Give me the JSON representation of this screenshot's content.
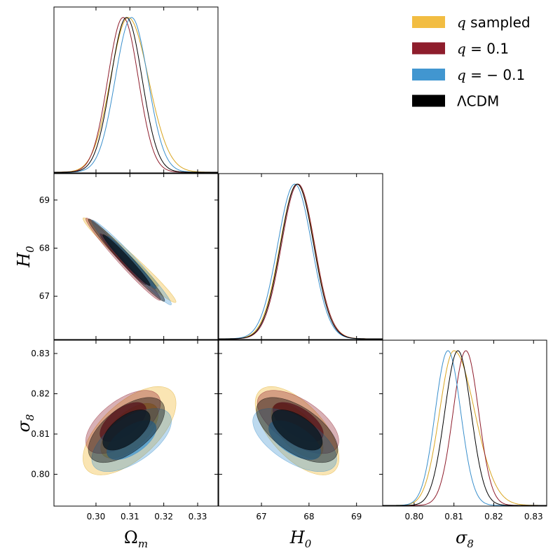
{
  "chart_data": {
    "type": "triangle_corner_plot",
    "parameters": [
      {
        "key": "om",
        "label": "Ω",
        "sub": "m",
        "range": [
          0.2876,
          0.336
        ],
        "ticks": [
          0.3,
          0.31,
          0.32,
          0.33
        ],
        "tick_labels": [
          "0.30",
          "0.31",
          "0.32",
          "0.33"
        ]
      },
      {
        "key": "h0",
        "label": "H",
        "sub": "0",
        "range": [
          66.1,
          69.55
        ],
        "ticks": [
          67,
          68,
          69
        ],
        "tick_labels": [
          "67",
          "68",
          "69"
        ]
      },
      {
        "key": "s8",
        "label": "σ",
        "sub": "8",
        "range": [
          0.7921,
          0.8333
        ],
        "ticks": [
          0.8,
          0.81,
          0.82,
          0.83
        ],
        "tick_labels": [
          "0.80",
          "0.81",
          "0.82",
          "0.83"
        ]
      }
    ],
    "series": [
      {
        "name": "q sampled",
        "legend_italic": "q",
        "legend_rest": " sampled",
        "color": "#f2bd42",
        "line_color": "#d9a520",
        "contour_alpha": [
          0.4,
          0.75
        ],
        "om": {
          "mean": 0.3095,
          "sd": 0.0052,
          "skew": 1.15
        },
        "h0": {
          "mean": 67.75,
          "sd": 0.36,
          "skew": 1.0
        },
        "s8": {
          "mean": 0.81,
          "sd": 0.0036,
          "skew": 1.45
        },
        "rho": {
          "om_h0": -0.98,
          "om_s8": 0.62,
          "h0_s8": -0.62
        }
      },
      {
        "name": "q = 0.1",
        "legend_italic": "q",
        "legend_rest": " = 0.1",
        "color": "#8e1d2c",
        "line_color": "#8e1d2c",
        "contour_alpha": [
          0.35,
          0.75
        ],
        "om": {
          "mean": 0.308,
          "sd": 0.0045,
          "skew": 1.0
        },
        "h0": {
          "mean": 67.77,
          "sd": 0.35,
          "skew": 1.0
        },
        "s8": {
          "mean": 0.813,
          "sd": 0.0032,
          "skew": 1.0
        },
        "rho": {
          "om_h0": -0.98,
          "om_s8": 0.6,
          "h0_s8": -0.6
        }
      },
      {
        "name": "q = −0.1",
        "legend_italic": "q",
        "legend_rest": " = − 0.1",
        "color": "#4196d0",
        "line_color": "#3a8fcc",
        "contour_alpha": [
          0.35,
          0.75
        ],
        "om": {
          "mean": 0.3105,
          "sd": 0.0048,
          "skew": 1.0
        },
        "h0": {
          "mean": 67.7,
          "sd": 0.36,
          "skew": 1.0
        },
        "s8": {
          "mean": 0.8085,
          "sd": 0.0032,
          "skew": 1.0
        },
        "rho": {
          "om_h0": -0.98,
          "om_s8": 0.6,
          "h0_s8": -0.6
        }
      },
      {
        "name": "ΛCDM",
        "legend_italic": "",
        "legend_rest": "ΛCDM",
        "color": "#000000",
        "line_color": "#000000",
        "contour_alpha": [
          0.4,
          0.85
        ],
        "inner_color": "#0d1b26",
        "om": {
          "mean": 0.309,
          "sd": 0.0046,
          "skew": 1.0
        },
        "h0": {
          "mean": 67.75,
          "sd": 0.35,
          "skew": 1.0
        },
        "s8": {
          "mean": 0.811,
          "sd": 0.0033,
          "skew": 1.0
        },
        "rho": {
          "om_h0": -0.98,
          "om_s8": 0.6,
          "h0_s8": -0.6
        }
      }
    ],
    "contour_levels": [
      "68%",
      "95%"
    ]
  }
}
